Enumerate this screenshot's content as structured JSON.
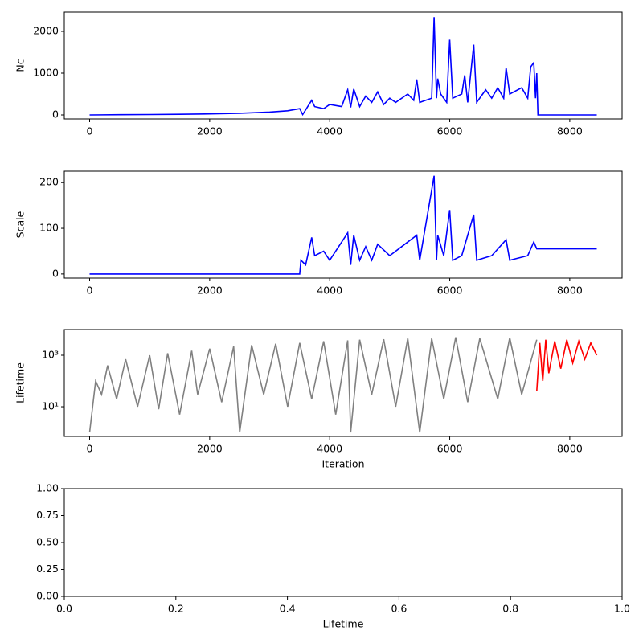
{
  "chart_data": [
    {
      "type": "line",
      "ylabel": "Nc",
      "xlim": [
        -422,
        8872
      ],
      "ylim": [
        -96,
        2461
      ],
      "xticks": [
        0,
        2000,
        4000,
        6000,
        8000
      ],
      "yticks": [
        0,
        1000,
        2000
      ],
      "color": "#0000ff",
      "x": [
        0,
        500,
        1000,
        1500,
        2000,
        2500,
        3000,
        3300,
        3500,
        3550,
        3700,
        3750,
        3900,
        4000,
        4200,
        4300,
        4350,
        4400,
        4500,
        4600,
        4700,
        4800,
        4900,
        5000,
        5100,
        5300,
        5400,
        5450,
        5500,
        5700,
        5740,
        5780,
        5800,
        5850,
        5950,
        6000,
        6050,
        6200,
        6250,
        6300,
        6400,
        6450,
        6600,
        6700,
        6800,
        6900,
        6940,
        7000,
        7200,
        7300,
        7350,
        7400,
        7430,
        7450,
        7470,
        8450
      ],
      "values": [
        0,
        5,
        10,
        15,
        25,
        40,
        70,
        100,
        150,
        10,
        350,
        200,
        150,
        250,
        200,
        600,
        180,
        620,
        200,
        450,
        300,
        550,
        250,
        400,
        300,
        500,
        350,
        850,
        300,
        400,
        2340,
        400,
        870,
        500,
        300,
        1800,
        400,
        500,
        950,
        300,
        1680,
        300,
        600,
        400,
        650,
        400,
        1130,
        500,
        650,
        400,
        1150,
        1250,
        400,
        1000,
        0,
        0
      ]
    },
    {
      "type": "line",
      "ylabel": "Scale",
      "xlim": [
        -422,
        8872
      ],
      "ylim": [
        -9,
        225
      ],
      "xticks": [
        0,
        2000,
        4000,
        6000,
        8000
      ],
      "yticks": [
        0,
        100,
        200
      ],
      "color": "#0000ff",
      "x": [
        0,
        3500,
        3520,
        3600,
        3700,
        3750,
        3900,
        4000,
        4300,
        4350,
        4400,
        4500,
        4600,
        4700,
        4800,
        5000,
        5450,
        5500,
        5740,
        5780,
        5800,
        5900,
        6000,
        6050,
        6200,
        6400,
        6450,
        6700,
        6940,
        7000,
        7300,
        7400,
        7450,
        8450
      ],
      "values": [
        0,
        0,
        30,
        20,
        80,
        40,
        50,
        30,
        90,
        20,
        85,
        30,
        60,
        30,
        65,
        40,
        85,
        30,
        215,
        30,
        85,
        40,
        140,
        30,
        40,
        130,
        30,
        40,
        75,
        30,
        40,
        70,
        55,
        55
      ]
    },
    {
      "type": "line",
      "ylabel": "Lifetime",
      "xlabel": "Iteration",
      "log_y": true,
      "xlim": [
        -422,
        8872
      ],
      "ylim": [
        0.7,
        10000
      ],
      "xticks": [
        0,
        2000,
        4000,
        6000,
        8000
      ],
      "yticks": [
        {
          "value": 10,
          "label": "10¹"
        },
        {
          "value": 1000,
          "label": "10³"
        }
      ],
      "series": [
        {
          "color": "#808080",
          "x": [
            0,
            100,
            200,
            300,
            450,
            600,
            800,
            1000,
            1150,
            1300,
            1500,
            1700,
            1800,
            2000,
            2200,
            2400,
            2500,
            2700,
            2900,
            3100,
            3300,
            3500,
            3700,
            3900,
            4100,
            4300,
            4350,
            4500,
            4700,
            4900,
            5100,
            5300,
            5500,
            5700,
            5900,
            6100,
            6300,
            6500,
            6800,
            7000,
            7200,
            7450
          ],
          "values": [
            1,
            100,
            30,
            400,
            20,
            700,
            10,
            1000,
            8,
            1200,
            5,
            1500,
            30,
            1800,
            15,
            2200,
            1,
            2500,
            30,
            2800,
            10,
            3000,
            20,
            3500,
            5,
            3800,
            1,
            4000,
            30,
            4200,
            10,
            4500,
            1,
            4500,
            20,
            5000,
            15,
            4500,
            20,
            4800,
            30,
            4000
          ]
        },
        {
          "color": "#ff0000",
          "x": [
            7450,
            7500,
            7550,
            7600,
            7650,
            7750,
            7850,
            7950,
            8050,
            8150,
            8250,
            8350,
            8450
          ],
          "values": [
            40,
            3000,
            100,
            4000,
            200,
            3500,
            300,
            4000,
            500,
            3500,
            700,
            3000,
            1000
          ]
        }
      ]
    },
    {
      "type": "line",
      "xlabel": "Lifetime",
      "xlim": [
        0,
        1
      ],
      "ylim": [
        0,
        1
      ],
      "xticks": [
        {
          "value": 0,
          "label": "0.0"
        },
        {
          "value": 0.2,
          "label": "0.2"
        },
        {
          "value": 0.4,
          "label": "0.4"
        },
        {
          "value": 0.6,
          "label": "0.6"
        },
        {
          "value": 0.8,
          "label": "0.8"
        },
        {
          "value": 1,
          "label": "1.0"
        }
      ],
      "yticks": [
        {
          "value": 0,
          "label": "0.00"
        },
        {
          "value": 0.25,
          "label": "0.25"
        },
        {
          "value": 0.5,
          "label": "0.50"
        },
        {
          "value": 0.75,
          "label": "0.75"
        },
        {
          "value": 1,
          "label": "1.00"
        }
      ]
    }
  ]
}
